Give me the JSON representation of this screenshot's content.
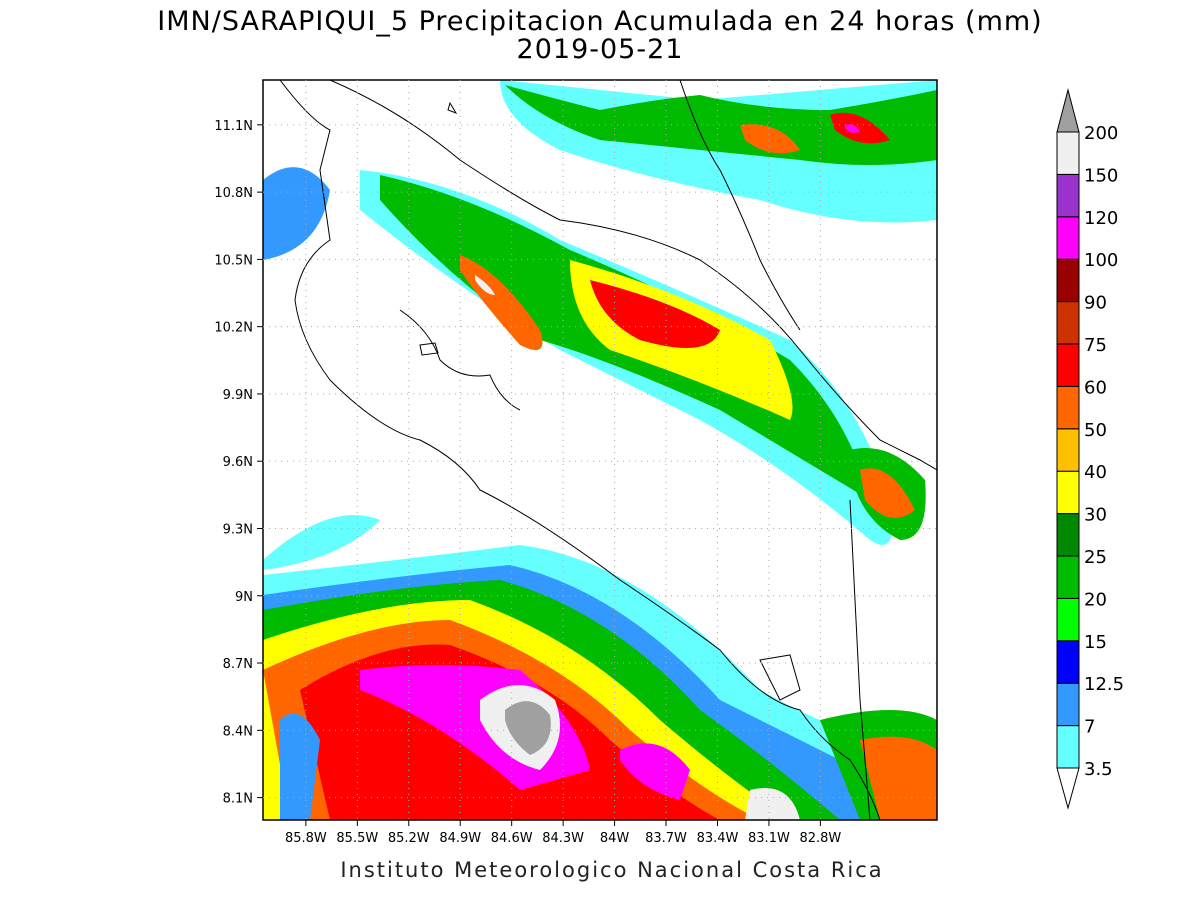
{
  "title": "IMN/SARAPIQUI_5 Precipitacion Acumulada en 24 horas (mm)",
  "subtitle": "2019-05-21",
  "footer": "Instituto Meteorologico Nacional Costa Rica",
  "map": {
    "latlim": [
      8.0,
      11.3
    ],
    "lonlim": [
      -86.05,
      -82.12
    ],
    "lat_ticks": [
      {
        "value": 11.1,
        "label": "11.1N"
      },
      {
        "value": 10.8,
        "label": "10.8N"
      },
      {
        "value": 10.5,
        "label": "10.5N"
      },
      {
        "value": 10.2,
        "label": "10.2N"
      },
      {
        "value": 9.9,
        "label": "9.9N"
      },
      {
        "value": 9.6,
        "label": "9.6N"
      },
      {
        "value": 9.3,
        "label": "9.3N"
      },
      {
        "value": 9,
        "label": "9N"
      },
      {
        "value": 8.7,
        "label": "8.7N"
      },
      {
        "value": 8.4,
        "label": "8.4N"
      },
      {
        "value": 8.1,
        "label": "8.1N"
      }
    ],
    "lon_ticks": [
      {
        "value": -85.8,
        "label": "85.8W"
      },
      {
        "value": -85.5,
        "label": "85.5W"
      },
      {
        "value": -85.2,
        "label": "85.2W"
      },
      {
        "value": -84.9,
        "label": "84.9W"
      },
      {
        "value": -84.6,
        "label": "84.6W"
      },
      {
        "value": -84.3,
        "label": "84.3W"
      },
      {
        "value": -84,
        "label": "84W"
      },
      {
        "value": -83.7,
        "label": "83.7W"
      },
      {
        "value": -83.4,
        "label": "83.4W"
      },
      {
        "value": -83.1,
        "label": "83.1W"
      },
      {
        "value": -82.8,
        "label": "82.8W"
      }
    ]
  },
  "colorbar": {
    "levels": [
      3.5,
      7,
      12.5,
      15,
      20,
      25,
      30,
      40,
      50,
      60,
      75,
      90,
      100,
      120,
      150,
      200
    ],
    "colors": [
      "#ffffff",
      "#66ffff",
      "#3399ff",
      "#0000ff",
      "#00ff00",
      "#00bb00",
      "#008800",
      "#ffff00",
      "#ffc000",
      "#ff6600",
      "#ff0000",
      "#cc3300",
      "#990000",
      "#ff00ff",
      "#9933cc",
      "#f0f0f0",
      "#a0a0a0"
    ]
  }
}
